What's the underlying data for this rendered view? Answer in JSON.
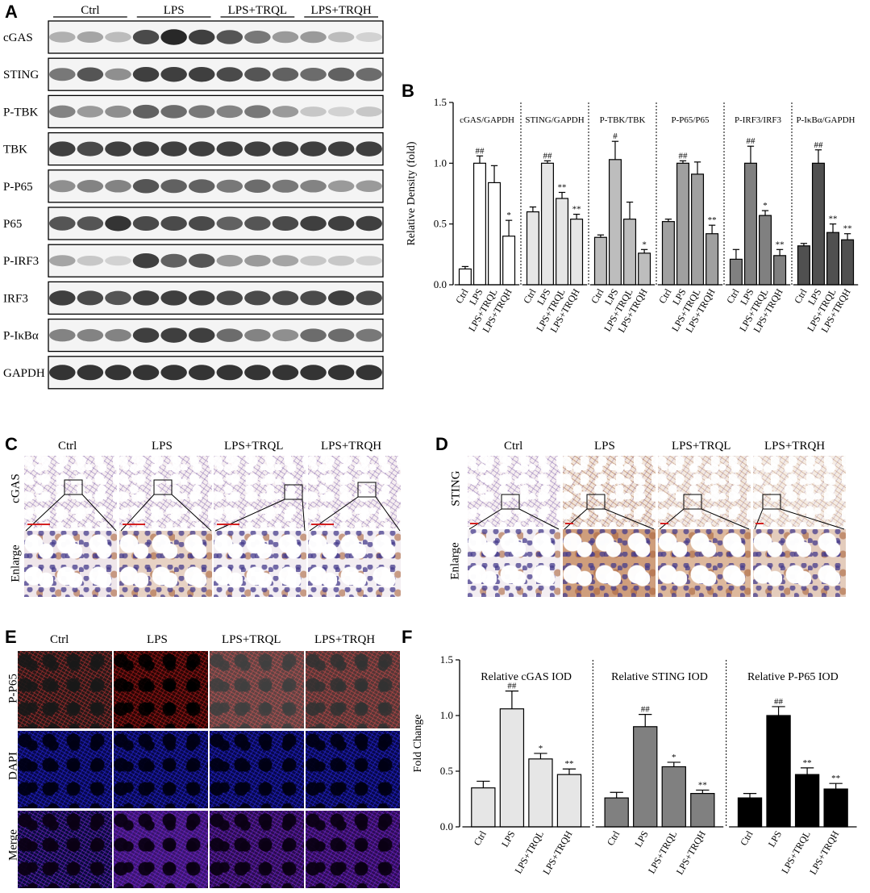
{
  "panels": [
    "A",
    "B",
    "C",
    "D",
    "E",
    "F"
  ],
  "blot": {
    "groups": [
      "Ctrl",
      "LPS",
      "LPS+TRQL",
      "LPS+TRQH"
    ],
    "rows": [
      {
        "label": "cGAS",
        "intensity": [
          0.35,
          0.4,
          0.3,
          0.8,
          0.95,
          0.85,
          0.75,
          0.6,
          0.45,
          0.45,
          0.3,
          0.2
        ]
      },
      {
        "label": "STING",
        "intensity": [
          0.6,
          0.75,
          0.5,
          0.85,
          0.85,
          0.85,
          0.8,
          0.75,
          0.7,
          0.65,
          0.7,
          0.65
        ]
      },
      {
        "label": "P-TBK",
        "intensity": [
          0.55,
          0.45,
          0.5,
          0.7,
          0.65,
          0.6,
          0.55,
          0.6,
          0.45,
          0.25,
          0.2,
          0.25
        ]
      },
      {
        "label": "TBK",
        "intensity": [
          0.85,
          0.8,
          0.85,
          0.85,
          0.85,
          0.85,
          0.85,
          0.85,
          0.85,
          0.85,
          0.85,
          0.85
        ]
      },
      {
        "label": "P-P65",
        "intensity": [
          0.5,
          0.55,
          0.55,
          0.75,
          0.7,
          0.7,
          0.6,
          0.65,
          0.6,
          0.55,
          0.45,
          0.45
        ]
      },
      {
        "label": "P65",
        "intensity": [
          0.75,
          0.75,
          0.9,
          0.8,
          0.8,
          0.8,
          0.7,
          0.75,
          0.8,
          0.85,
          0.85,
          0.85
        ]
      },
      {
        "label": "P-IRF3",
        "intensity": [
          0.4,
          0.25,
          0.2,
          0.85,
          0.7,
          0.75,
          0.45,
          0.45,
          0.4,
          0.25,
          0.25,
          0.2
        ]
      },
      {
        "label": "IRF3",
        "intensity": [
          0.85,
          0.8,
          0.75,
          0.85,
          0.85,
          0.85,
          0.8,
          0.8,
          0.8,
          0.8,
          0.85,
          0.8
        ]
      },
      {
        "label": "P-IκBα",
        "intensity": [
          0.55,
          0.55,
          0.55,
          0.85,
          0.85,
          0.85,
          0.65,
          0.55,
          0.5,
          0.65,
          0.65,
          0.6
        ]
      },
      {
        "label": "GAPDH",
        "intensity": [
          0.9,
          0.9,
          0.9,
          0.9,
          0.9,
          0.9,
          0.9,
          0.9,
          0.9,
          0.9,
          0.9,
          0.9
        ]
      }
    ]
  },
  "ihc": {
    "columns": [
      "Ctrl",
      "LPS",
      "LPS+TRQL",
      "LPS+TRQH"
    ],
    "c_row_label": "cGAS",
    "d_row_label": "STING",
    "enlarge_label": "Enlarge"
  },
  "if": {
    "columns": [
      "Ctrl",
      "LPS",
      "LPS+TRQL",
      "LPS+TRQH"
    ],
    "rows": [
      "P-P65",
      "DAPI",
      "Merge"
    ]
  },
  "chart_data": [
    {
      "type": "bar",
      "panel": "B",
      "ylabel": "Relative Density (fold)",
      "ylim": [
        0,
        1.5
      ],
      "yticks": [
        "0.0",
        "0.5",
        "1.0",
        "1.5"
      ],
      "categories": [
        "Ctrl",
        "LPS",
        "LPS+TRQL",
        "LPS+TRQH"
      ],
      "groups": [
        {
          "name": "cGAS/GAPDH",
          "color": "#ffffff",
          "values": [
            0.13,
            1.0,
            0.84,
            0.4
          ],
          "errors": [
            0.02,
            0.06,
            0.14,
            0.13
          ],
          "marks": [
            "",
            "##",
            "",
            "*"
          ]
        },
        {
          "name": "STING/GAPDH",
          "color": "#e6e6e6",
          "values": [
            0.6,
            1.0,
            0.71,
            0.54
          ],
          "errors": [
            0.04,
            0.02,
            0.05,
            0.04
          ],
          "marks": [
            "",
            "##",
            "**",
            "**"
          ]
        },
        {
          "name": "P-TBK/TBK",
          "color": "#bdbdbd",
          "values": [
            0.39,
            1.03,
            0.54,
            0.26
          ],
          "errors": [
            0.02,
            0.15,
            0.14,
            0.03
          ],
          "marks": [
            "",
            "#",
            "",
            "*"
          ]
        },
        {
          "name": "P-P65/P65",
          "color": "#a0a0a0",
          "values": [
            0.52,
            1.0,
            0.91,
            0.42
          ],
          "errors": [
            0.02,
            0.02,
            0.1,
            0.07
          ],
          "marks": [
            "",
            "##",
            "",
            "**"
          ]
        },
        {
          "name": "P-IRF3/IRF3",
          "color": "#808080",
          "values": [
            0.21,
            1.0,
            0.57,
            0.24
          ],
          "errors": [
            0.08,
            0.14,
            0.04,
            0.05
          ],
          "marks": [
            "",
            "##",
            "*",
            "**"
          ]
        },
        {
          "name": "P-IκBα/GAPDH",
          "color": "#505050",
          "values": [
            0.32,
            1.0,
            0.43,
            0.37
          ],
          "errors": [
            0.02,
            0.11,
            0.07,
            0.05
          ],
          "marks": [
            "",
            "##",
            "**",
            "**"
          ]
        }
      ]
    },
    {
      "type": "bar",
      "panel": "F",
      "ylabel": "Fold Change",
      "ylim": [
        0,
        1.5
      ],
      "yticks": [
        "0.0",
        "0.5",
        "1.0",
        "1.5"
      ],
      "categories": [
        "Ctrl",
        "LPS",
        "LPS+TRQL",
        "LPS+TRQH"
      ],
      "groups": [
        {
          "name": "Relative cGAS IOD",
          "color": "#e6e6e6",
          "values": [
            0.35,
            1.06,
            0.61,
            0.47
          ],
          "errors": [
            0.06,
            0.16,
            0.05,
            0.05
          ],
          "marks": [
            "",
            "##",
            "*",
            "**"
          ]
        },
        {
          "name": "Relative STING IOD",
          "color": "#808080",
          "values": [
            0.26,
            0.9,
            0.54,
            0.3
          ],
          "errors": [
            0.05,
            0.11,
            0.04,
            0.03
          ],
          "marks": [
            "",
            "##",
            "*",
            "**"
          ]
        },
        {
          "name": "Relative P-P65 IOD",
          "color": "#000000",
          "values": [
            0.26,
            1.0,
            0.47,
            0.34
          ],
          "errors": [
            0.04,
            0.08,
            0.06,
            0.05
          ],
          "marks": [
            "",
            "##",
            "**",
            "**"
          ]
        }
      ]
    }
  ]
}
